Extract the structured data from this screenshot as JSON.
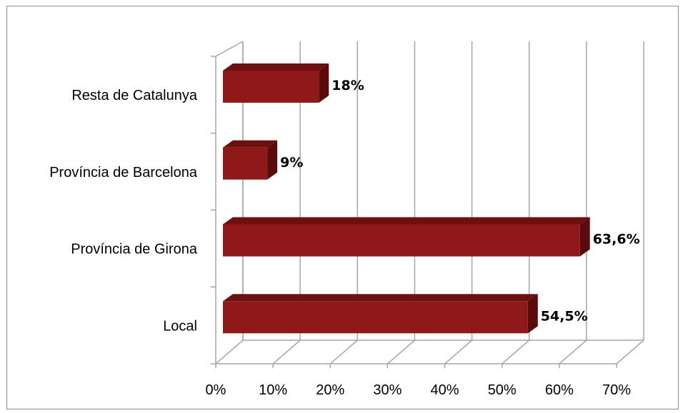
{
  "chart_data": {
    "type": "bar",
    "orientation": "horizontal",
    "style": "3d",
    "categories": [
      "Resta de Catalunya",
      "Província de Barcelona",
      "Província de Girona",
      "Local"
    ],
    "values": [
      18,
      9,
      63.6,
      54.5
    ],
    "data_labels": [
      "18%",
      "9%",
      "63,6%",
      "54,5%"
    ],
    "xlim": [
      0,
      70
    ],
    "xticks": [
      0,
      10,
      20,
      30,
      40,
      50,
      60,
      70
    ],
    "xtick_labels": [
      "0%",
      "10%",
      "20%",
      "30%",
      "40%",
      "50%",
      "60%",
      "70%"
    ],
    "title": "",
    "xlabel": "",
    "ylabel": "",
    "grid": true,
    "legend": "none",
    "colors": {
      "bar_front": "#8f1818",
      "bar_top": "#6e1010",
      "bar_side": "#5a0c0c",
      "gridline": "#a6a6a6",
      "frame": "#8c8c8c"
    }
  }
}
